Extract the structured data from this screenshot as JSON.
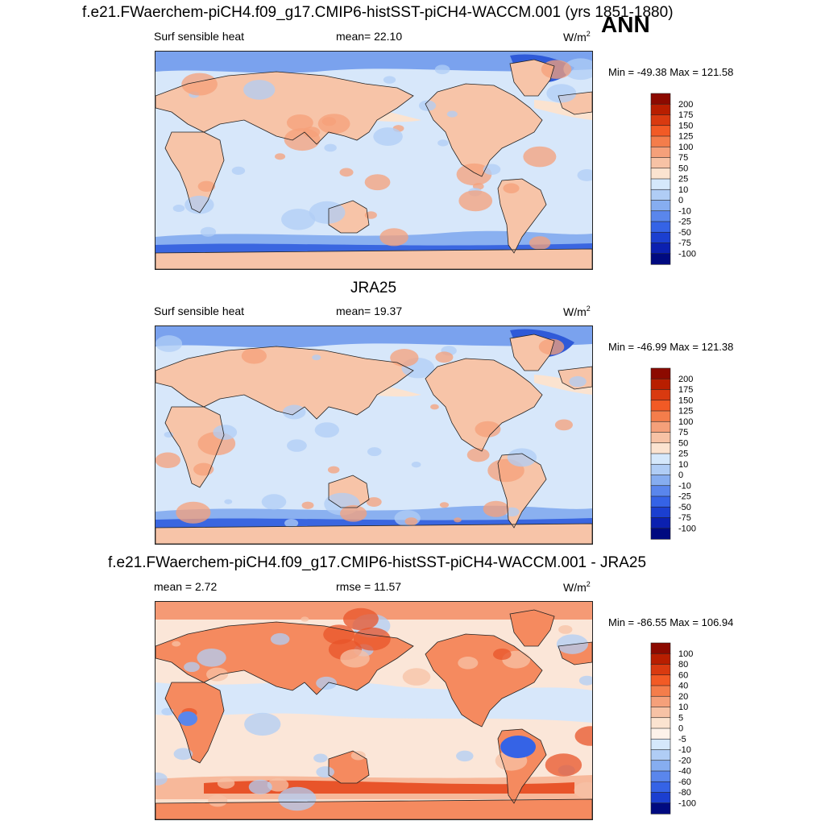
{
  "page": {
    "season": "ANN"
  },
  "panels": [
    {
      "title": "f.e21.FWaerchem-piCH4.f09_g17.CMIP6-histSST-piCH4-WACCM.001 (yrs 1851-1880)",
      "left_label": "Surf sensible heat",
      "mid_label": "mean=  22.10",
      "units_base": "W/m",
      "units_exp": "2",
      "minmax": "Min = -49.38 Max = 121.58",
      "kind": "model"
    },
    {
      "title": "JRA25",
      "left_label": "Surf sensible heat",
      "mid_label": "mean=  19.37",
      "units_base": "W/m",
      "units_exp": "2",
      "minmax": "Min = -46.99 Max = 121.38",
      "kind": "obs"
    },
    {
      "title": "f.e21.FWaerchem-piCH4.f09_g17.CMIP6-histSST-piCH4-WACCM.001 - JRA25",
      "left_label": "mean =   2.72",
      "mid_label": "rmse =  11.57",
      "units_base": "W/m",
      "units_exp": "2",
      "minmax": "Min = -86.55 Max = 106.94",
      "kind": "diff"
    }
  ],
  "chart_data": [
    {
      "type": "heatmap",
      "title": "f.e21.FWaerchem-piCH4.f09_g17.CMIP6-histSST-piCH4-WACCM.001 (yrs 1851-1880)",
      "variable": "Surf sensible heat",
      "units": "W/m2",
      "mean": 22.1,
      "min": -49.38,
      "max": 121.58,
      "colorbar_levels": [
        "200",
        "175",
        "150",
        "125",
        "100",
        "75",
        "50",
        "25",
        "10",
        "0",
        "-10",
        "-25",
        "-50",
        "-75",
        "-100"
      ],
      "colorbar_colors": [
        "#8c0a00",
        "#b81e00",
        "#d93a10",
        "#f25a25",
        "#f47d4b",
        "#f5a07a",
        "#f7c2a5",
        "#fbe3d0",
        "#d5e8fb",
        "#b0cdf5",
        "#86adf0",
        "#5a86ec",
        "#3563e6",
        "#1b3fd0",
        "#0b20b0",
        "#000a80"
      ]
    },
    {
      "type": "heatmap",
      "title": "JRA25",
      "variable": "Surf sensible heat",
      "units": "W/m2",
      "mean": 19.37,
      "min": -46.99,
      "max": 121.38,
      "colorbar_levels": [
        "200",
        "175",
        "150",
        "125",
        "100",
        "75",
        "50",
        "25",
        "10",
        "0",
        "-10",
        "-25",
        "-50",
        "-75",
        "-100"
      ],
      "colorbar_colors": [
        "#8c0a00",
        "#b81e00",
        "#d93a10",
        "#f25a25",
        "#f47d4b",
        "#f5a07a",
        "#f7c2a5",
        "#fbe3d0",
        "#d5e8fb",
        "#b0cdf5",
        "#86adf0",
        "#5a86ec",
        "#3563e6",
        "#1b3fd0",
        "#0b20b0",
        "#000a80"
      ]
    },
    {
      "type": "heatmap",
      "title": "f.e21.FWaerchem-piCH4.f09_g17.CMIP6-histSST-piCH4-WACCM.001 - JRA25",
      "units": "W/m2",
      "mean": 2.72,
      "rmse": 11.57,
      "min": -86.55,
      "max": 106.94,
      "colorbar_levels": [
        "100",
        "80",
        "60",
        "40",
        "20",
        "10",
        "5",
        "0",
        "-5",
        "-10",
        "-20",
        "-40",
        "-60",
        "-80",
        "-100"
      ],
      "colorbar_colors": [
        "#8c0a00",
        "#b81e00",
        "#d93a10",
        "#f25a25",
        "#f47d4b",
        "#f5a07a",
        "#f7c2a5",
        "#fbe3d0",
        "#fdf2ea",
        "#d5e8fb",
        "#b0cdf5",
        "#86adf0",
        "#5a86ec",
        "#3563e6",
        "#1b3fd0",
        "#000a80"
      ]
    }
  ]
}
